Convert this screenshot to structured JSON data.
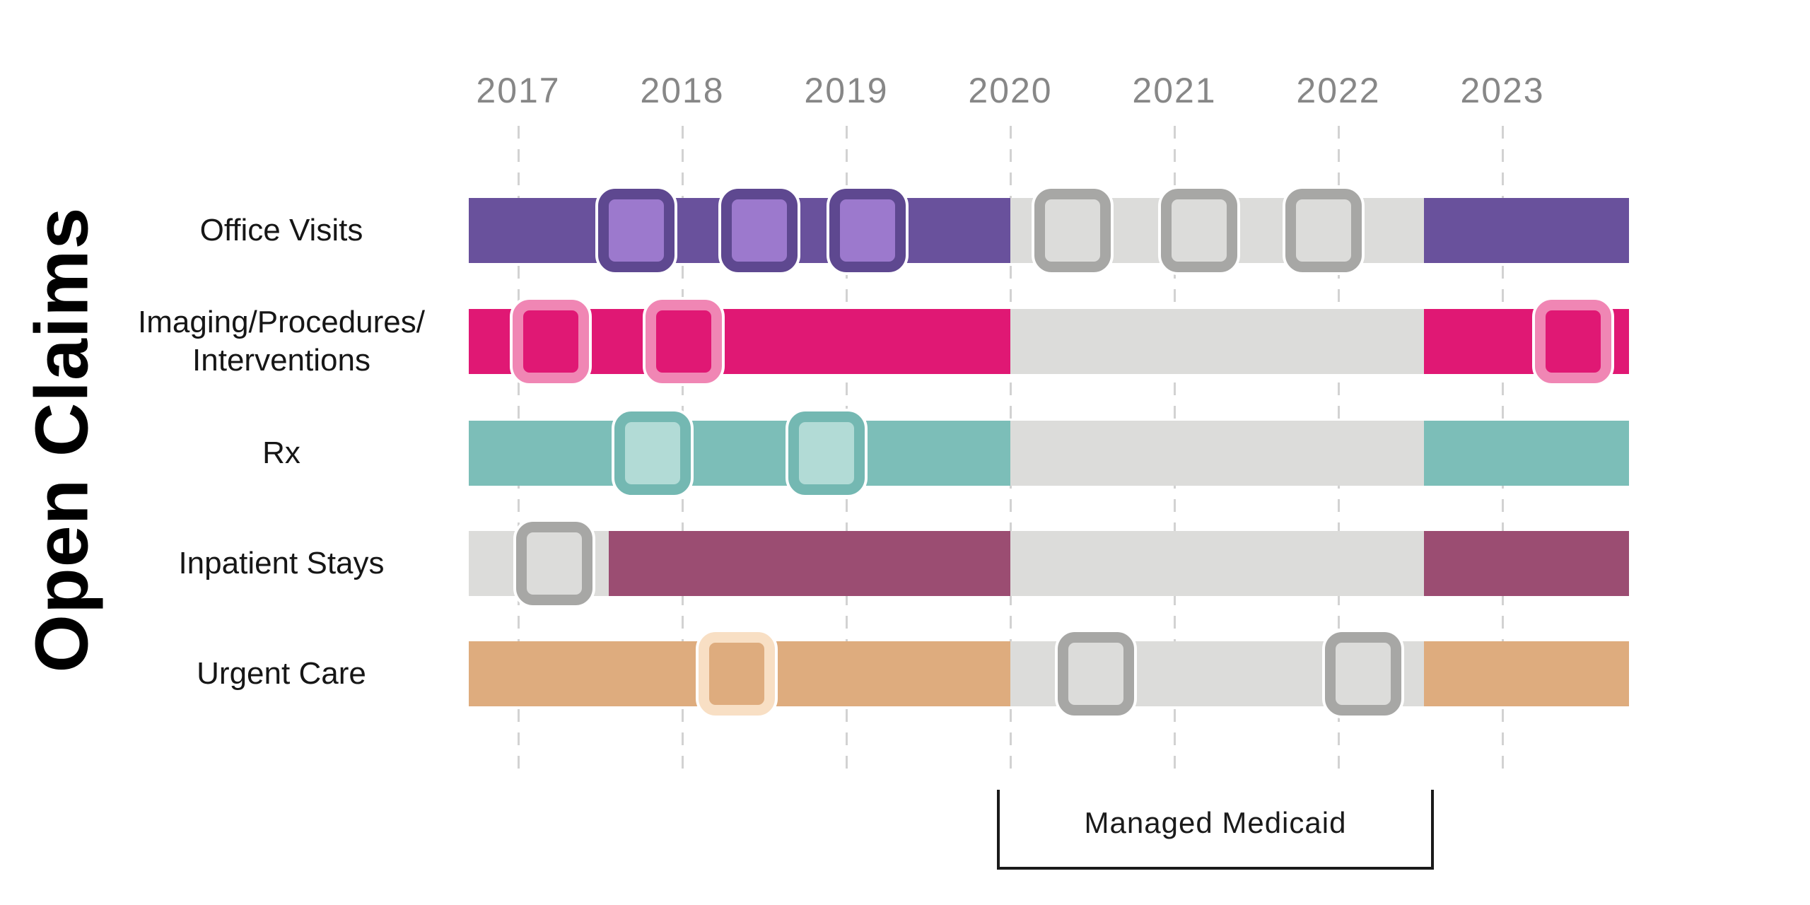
{
  "title": "Open Claims",
  "chart_data": {
    "type": "timeline",
    "title": "Open Claims",
    "x_axis": {
      "tick_labels": [
        "2017",
        "2018",
        "2019",
        "2020",
        "2021",
        "2022",
        "2023"
      ],
      "tick_years": [
        2017,
        2018,
        2019,
        2020,
        2021,
        2022,
        2023
      ],
      "range_start": 2016.7,
      "range_end": 2023.77,
      "gridlines": "dashed-vertical"
    },
    "annotation": {
      "label": "Managed Medicaid",
      "from_year": 2019.92,
      "to_year": 2022.58,
      "shape": "bottom-bracket"
    },
    "inactive_period": {
      "from_year": 2020.0,
      "to_year": 2022.52
    },
    "styles": {
      "purple": {
        "bar": "#69519C",
        "marker_border": "#5E4890",
        "marker_fill": "#9C79CD"
      },
      "pink": {
        "bar": "#E01874",
        "marker_border": "#F086B4",
        "marker_fill": "#E01874"
      },
      "teal": {
        "bar": "#7CBEB8",
        "marker_border": "#74B8B2",
        "marker_fill": "#B2DBD6"
      },
      "maroon": {
        "bar": "#9B4D72",
        "marker_border": "#A7A7A5",
        "marker_fill": "#DCDCDA"
      },
      "tan": {
        "bar": "#DEAC7E",
        "marker_border": "#F8DFC4",
        "marker_fill": "#DEAC7E"
      },
      "inactive": {
        "bar": "#DCDCDA",
        "marker_border": "#A7A7A5",
        "marker_fill": "#DCDCDA"
      }
    },
    "text_colors": {
      "year_label": "#878787",
      "row_label": "#161616",
      "title": "#000000",
      "annotation": "#1a1a1a"
    },
    "rows": [
      {
        "label": "Office Visits",
        "label_lines": [
          "Office Visits"
        ],
        "style": "purple",
        "segments": [
          {
            "from": 2016.7,
            "to": 2020.0,
            "style": "purple"
          },
          {
            "from": 2020.0,
            "to": 2022.52,
            "style": "inactive"
          },
          {
            "from": 2022.52,
            "to": 2023.77,
            "style": "purple"
          }
        ],
        "markers": [
          {
            "year": 2017.72,
            "style": "purple"
          },
          {
            "year": 2018.47,
            "style": "purple"
          },
          {
            "year": 2019.13,
            "style": "purple"
          },
          {
            "year": 2020.38,
            "style": "inactive"
          },
          {
            "year": 2021.15,
            "style": "inactive"
          },
          {
            "year": 2021.91,
            "style": "inactive"
          }
        ]
      },
      {
        "label": "Imaging/Procedures/ Interventions",
        "label_lines": [
          "Imaging/Procedures/",
          "Interventions"
        ],
        "style": "pink",
        "segments": [
          {
            "from": 2016.7,
            "to": 2020.0,
            "style": "pink"
          },
          {
            "from": 2020.0,
            "to": 2022.52,
            "style": "inactive"
          },
          {
            "from": 2022.52,
            "to": 2023.77,
            "style": "pink"
          }
        ],
        "markers": [
          {
            "year": 2017.2,
            "style": "pink"
          },
          {
            "year": 2018.01,
            "style": "pink"
          },
          {
            "year": 2023.43,
            "style": "pink"
          }
        ]
      },
      {
        "label": "Rx",
        "label_lines": [
          "Rx"
        ],
        "style": "teal",
        "segments": [
          {
            "from": 2016.7,
            "to": 2020.0,
            "style": "teal"
          },
          {
            "from": 2020.0,
            "to": 2022.52,
            "style": "inactive"
          },
          {
            "from": 2022.52,
            "to": 2023.77,
            "style": "teal"
          }
        ],
        "markers": [
          {
            "year": 2017.82,
            "style": "teal"
          },
          {
            "year": 2018.88,
            "style": "teal"
          }
        ]
      },
      {
        "label": "Inpatient Stays",
        "label_lines": [
          "Inpatient Stays"
        ],
        "style": "maroon",
        "segments": [
          {
            "from": 2016.7,
            "to": 2017.55,
            "style": "inactive"
          },
          {
            "from": 2017.55,
            "to": 2020.0,
            "style": "maroon"
          },
          {
            "from": 2020.0,
            "to": 2022.52,
            "style": "inactive"
          },
          {
            "from": 2022.52,
            "to": 2023.77,
            "style": "maroon"
          }
        ],
        "markers": [
          {
            "year": 2017.22,
            "style": "inactive"
          }
        ]
      },
      {
        "label": "Urgent Care",
        "label_lines": [
          "Urgent Care"
        ],
        "style": "tan",
        "segments": [
          {
            "from": 2016.7,
            "to": 2020.0,
            "style": "tan"
          },
          {
            "from": 2020.0,
            "to": 2022.52,
            "style": "inactive"
          },
          {
            "from": 2022.52,
            "to": 2023.77,
            "style": "tan"
          }
        ],
        "markers": [
          {
            "year": 2018.33,
            "style": "tan"
          },
          {
            "year": 2020.52,
            "style": "inactive"
          },
          {
            "year": 2022.15,
            "style": "inactive"
          }
        ]
      }
    ]
  }
}
